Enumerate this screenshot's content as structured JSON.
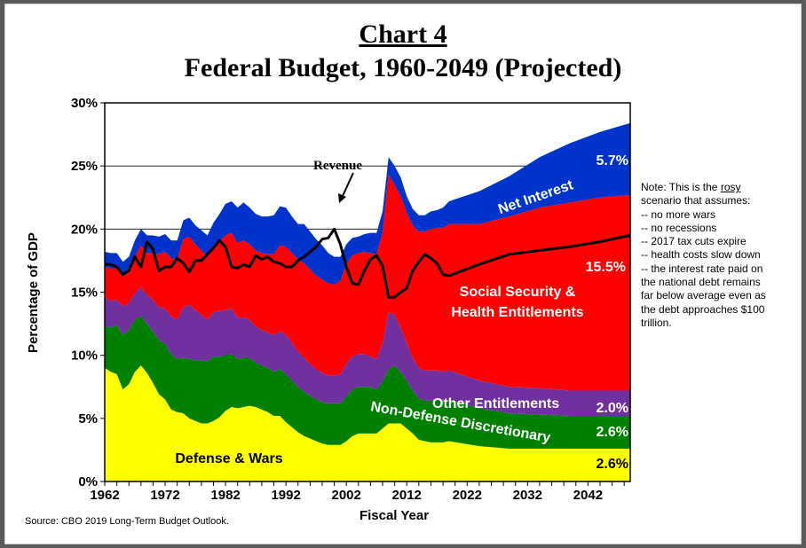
{
  "title": "Chart 4",
  "subtitle": "Federal Budget, 1960-2049 (Projected)",
  "note_lines": [
    "Note: This is the rosy",
    "scenario that assumes:",
    "-- no more wars",
    "-- no recessions",
    "-- 2017 tax cuts expire",
    "-- health costs slow down",
    "-- the interest rate paid on",
    "the national debt remains",
    "far below average even as",
    "the debt approaches $100",
    "trillion."
  ],
  "source": "Source: CBO 2019 Long-Term Budget Outlook.",
  "chart_data": {
    "type": "area",
    "stacked": true,
    "title": "Chart 4",
    "subtitle": "Federal Budget, 1960-2049 (Projected)",
    "xlabel": "Fiscal Year",
    "ylabel": "Percentage of GDP",
    "xlim": [
      1962,
      2049
    ],
    "ylim": [
      0,
      30
    ],
    "x_ticks": [
      "1962",
      "1972",
      "1982",
      "1992",
      "2002",
      "2012",
      "2022",
      "2032",
      "2042"
    ],
    "y_ticks": [
      "0%",
      "5%",
      "10%",
      "15%",
      "20%",
      "25%",
      "30%"
    ],
    "grid": "horizontal",
    "x": [
      1962,
      1963,
      1964,
      1965,
      1966,
      1967,
      1968,
      1969,
      1970,
      1971,
      1972,
      1973,
      1974,
      1975,
      1976,
      1977,
      1978,
      1979,
      1980,
      1981,
      1982,
      1983,
      1984,
      1985,
      1986,
      1987,
      1988,
      1989,
      1990,
      1991,
      1992,
      1993,
      1994,
      1995,
      1996,
      1997,
      1998,
      1999,
      2000,
      2001,
      2002,
      2003,
      2004,
      2005,
      2006,
      2007,
      2008,
      2009,
      2010,
      2011,
      2012,
      2013,
      2014,
      2015,
      2016,
      2017,
      2018,
      2019,
      2024,
      2029,
      2034,
      2039,
      2044,
      2049
    ],
    "series": [
      {
        "name": "Defense & Wars",
        "color": "#FFFF00",
        "label_value": "2.6%",
        "values": [
          9.0,
          8.7,
          8.5,
          7.3,
          7.7,
          8.7,
          9.2,
          8.6,
          7.8,
          6.9,
          6.5,
          5.7,
          5.5,
          5.4,
          5.0,
          4.8,
          4.6,
          4.6,
          4.8,
          5.1,
          5.6,
          5.9,
          5.8,
          5.9,
          6.0,
          5.9,
          5.7,
          5.5,
          5.2,
          5.2,
          4.7,
          4.3,
          3.9,
          3.6,
          3.4,
          3.2,
          3.0,
          2.9,
          2.9,
          2.9,
          3.2,
          3.6,
          3.8,
          3.8,
          3.8,
          3.8,
          4.2,
          4.6,
          4.6,
          4.6,
          4.2,
          3.8,
          3.3,
          3.2,
          3.1,
          3.1,
          3.1,
          3.2,
          2.8,
          2.6,
          2.6,
          2.6,
          2.6,
          2.6
        ]
      },
      {
        "name": "Non-Defense Discretionary",
        "color": "#008000",
        "label_value": "2.6%",
        "values": [
          3.3,
          3.5,
          3.9,
          4.3,
          4.3,
          4.1,
          3.9,
          3.9,
          4.1,
          4.3,
          4.4,
          4.4,
          4.2,
          4.4,
          4.7,
          4.8,
          5.0,
          4.9,
          5.1,
          4.8,
          4.4,
          4.2,
          3.9,
          3.9,
          3.8,
          3.5,
          3.5,
          3.5,
          3.5,
          3.7,
          3.8,
          3.7,
          3.6,
          3.5,
          3.4,
          3.3,
          3.3,
          3.3,
          3.3,
          3.3,
          3.5,
          3.7,
          3.7,
          3.7,
          3.7,
          3.5,
          3.7,
          4.3,
          4.6,
          4.1,
          3.8,
          3.4,
          3.3,
          3.2,
          3.3,
          3.3,
          3.3,
          3.3,
          3.0,
          2.8,
          2.7,
          2.6,
          2.6,
          2.6
        ]
      },
      {
        "name": "Other Entitlements",
        "color": "#7030A0",
        "label_value": "2.0%",
        "values": [
          2.3,
          2.1,
          2.0,
          2.3,
          2.1,
          2.1,
          2.3,
          2.3,
          2.5,
          2.6,
          2.8,
          3.0,
          3.1,
          4.0,
          4.3,
          4.0,
          3.6,
          3.3,
          3.5,
          3.6,
          3.6,
          3.6,
          3.3,
          3.2,
          3.0,
          2.9,
          2.8,
          2.8,
          2.9,
          3.0,
          3.1,
          3.0,
          2.8,
          2.7,
          2.5,
          2.4,
          2.3,
          2.2,
          2.2,
          2.3,
          2.6,
          2.6,
          2.6,
          2.6,
          2.4,
          2.4,
          3.0,
          4.5,
          4.0,
          3.5,
          3.0,
          2.6,
          2.4,
          2.4,
          2.4,
          2.4,
          2.3,
          2.3,
          2.2,
          2.1,
          2.1,
          2.0,
          2.0,
          2.0
        ]
      },
      {
        "name": "Social Security & Health Entitlements",
        "color": "#FF0000",
        "label_value": "15.5%",
        "values": [
          2.4,
          2.6,
          2.5,
          2.3,
          2.5,
          2.9,
          3.3,
          3.3,
          3.7,
          4.2,
          4.5,
          4.6,
          4.8,
          5.4,
          5.4,
          5.2,
          5.1,
          5.0,
          5.2,
          5.5,
          5.9,
          6.0,
          5.9,
          6.1,
          6.0,
          6.0,
          6.1,
          6.2,
          6.4,
          6.8,
          7.0,
          7.1,
          7.3,
          7.5,
          7.5,
          7.4,
          7.4,
          7.3,
          7.2,
          7.4,
          7.9,
          8.0,
          8.0,
          8.1,
          8.2,
          8.3,
          8.8,
          10.9,
          10.3,
          10.4,
          10.3,
          10.5,
          10.8,
          11.0,
          11.2,
          11.3,
          11.4,
          11.6,
          12.4,
          13.5,
          14.3,
          14.9,
          15.3,
          15.5
        ]
      },
      {
        "name": "Net Interest",
        "color": "#0033CC",
        "label_value": "5.7%",
        "values": [
          1.2,
          1.2,
          1.2,
          1.2,
          1.2,
          1.3,
          1.3,
          1.4,
          1.4,
          1.4,
          1.4,
          1.4,
          1.5,
          1.5,
          1.5,
          1.5,
          1.6,
          1.7,
          1.9,
          2.2,
          2.5,
          2.5,
          2.8,
          3.0,
          2.9,
          2.9,
          2.9,
          3.0,
          3.1,
          3.1,
          3.1,
          2.9,
          2.8,
          3.1,
          3.0,
          2.9,
          2.7,
          2.4,
          2.2,
          1.9,
          1.6,
          1.4,
          1.3,
          1.4,
          1.6,
          1.7,
          1.7,
          1.4,
          1.5,
          1.5,
          1.3,
          1.3,
          1.3,
          1.3,
          1.4,
          1.4,
          1.6,
          1.8,
          2.6,
          3.2,
          4.0,
          4.7,
          5.2,
          5.7
        ]
      }
    ],
    "revenue": {
      "name": "Revenue",
      "color": "#000000",
      "values": [
        17.2,
        17.2,
        17.0,
        16.4,
        16.7,
        17.8,
        17.0,
        19.0,
        18.4,
        16.7,
        17.0,
        17.0,
        17.7,
        17.3,
        16.6,
        17.5,
        17.5,
        18.0,
        18.5,
        19.1,
        18.6,
        17.0,
        16.9,
        17.2,
        17.0,
        17.9,
        17.6,
        17.8,
        17.4,
        17.3,
        17.0,
        17.0,
        17.5,
        17.8,
        18.2,
        18.6,
        19.2,
        19.3,
        20.0,
        18.8,
        17.0,
        15.7,
        15.6,
        16.7,
        17.6,
        17.9,
        17.1,
        14.6,
        14.6,
        15.0,
        15.3,
        16.7,
        17.4,
        18.0,
        17.7,
        17.3,
        16.4,
        16.3,
        17.2,
        18.0,
        18.3,
        18.6,
        19.0,
        19.5
      ]
    }
  },
  "labels": {
    "revenue": "Revenue",
    "net_interest": "Net Interest",
    "ss_line1": "Social Security &",
    "ss_line2": "Health Entitlements",
    "other_ent": "Other Entitlements",
    "non_def": "Non-Defense Discretionary",
    "defense": "Defense & Wars"
  }
}
